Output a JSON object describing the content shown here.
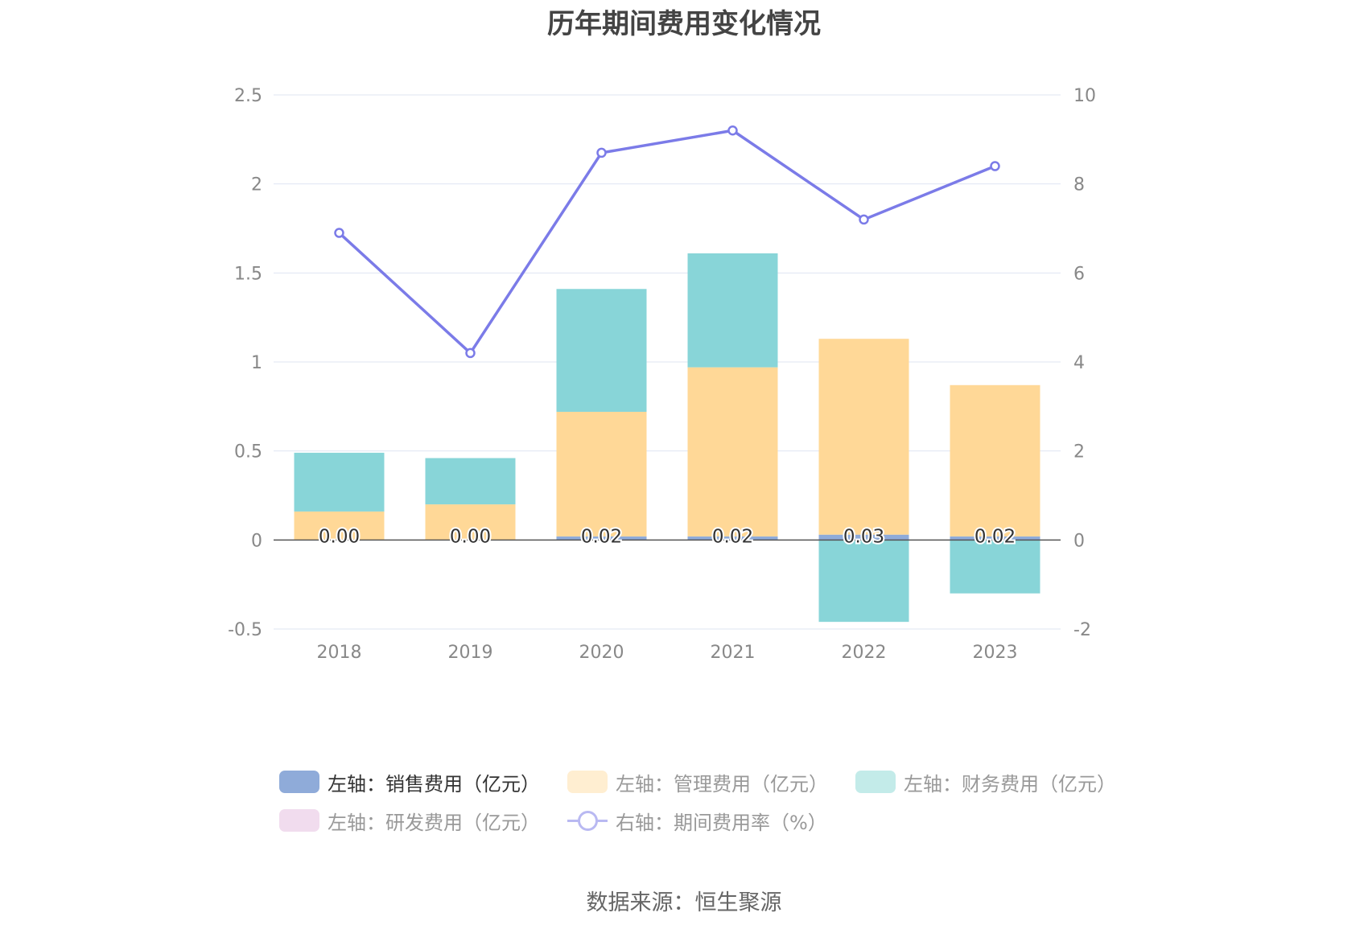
{
  "title": "历年期间费用变化情况",
  "source": "数据来源：恒生聚源",
  "legend": [
    {
      "label": "左轴：销售费用（亿元）",
      "color": "#8fabd9",
      "kind": "bar",
      "active": true
    },
    {
      "label": "左轴：管理费用（亿元）",
      "color": "#ffeed1",
      "kind": "bar",
      "active": false
    },
    {
      "label": "左轴：财务费用（亿元）",
      "color": "#c3ebe9",
      "kind": "bar",
      "active": false
    },
    {
      "label": "左轴：研发费用（亿元）",
      "color": "#f1dcee",
      "kind": "bar",
      "active": false
    },
    {
      "label": "右轴：期间费用率（%）",
      "color": "#b9b9f2",
      "kind": "line",
      "active": false
    }
  ],
  "chart_data": {
    "type": "bar",
    "title": "历年期间费用变化情况",
    "categories": [
      "2018",
      "2019",
      "2020",
      "2021",
      "2022",
      "2023"
    ],
    "left_axis": {
      "ticks": [
        "2.5",
        "2",
        "1.5",
        "1",
        "0.5",
        "0",
        "-0.5"
      ],
      "range": [
        -0.5,
        2.5
      ]
    },
    "right_axis": {
      "ticks": [
        "10",
        "8",
        "6",
        "4",
        "2",
        "0",
        "-2"
      ],
      "range": [
        -2,
        10
      ]
    },
    "grid": true,
    "legend_position": "bottom",
    "series": [
      {
        "name": "左轴：销售费用（亿元）",
        "type": "bar",
        "axis": "left",
        "color": "#8fabd9",
        "values": [
          0.0,
          0.0,
          0.02,
          0.02,
          0.03,
          0.02
        ],
        "labels": [
          "0.00",
          "0.00",
          "0.02",
          "0.02",
          "0.03",
          "0.02"
        ]
      },
      {
        "name": "左轴：管理费用（亿元）",
        "type": "bar",
        "axis": "left",
        "color": "#ffd897",
        "values": [
          0.16,
          0.2,
          0.7,
          0.95,
          1.1,
          0.85
        ]
      },
      {
        "name": "左轴：财务费用（亿元）",
        "type": "bar",
        "axis": "left",
        "color": "#88d5d8",
        "values": [
          0.33,
          0.26,
          0.69,
          0.64,
          -0.46,
          -0.3
        ]
      },
      {
        "name": "左轴：研发费用（亿元）",
        "type": "bar",
        "axis": "left",
        "color": "#f1dcee",
        "values": [
          0,
          0,
          0,
          0,
          0,
          0
        ]
      },
      {
        "name": "右轴：期间费用率（%）",
        "type": "line",
        "axis": "right",
        "color": "#7b7be8",
        "values": [
          6.9,
          4.2,
          8.7,
          9.2,
          7.2,
          8.4
        ]
      }
    ]
  }
}
